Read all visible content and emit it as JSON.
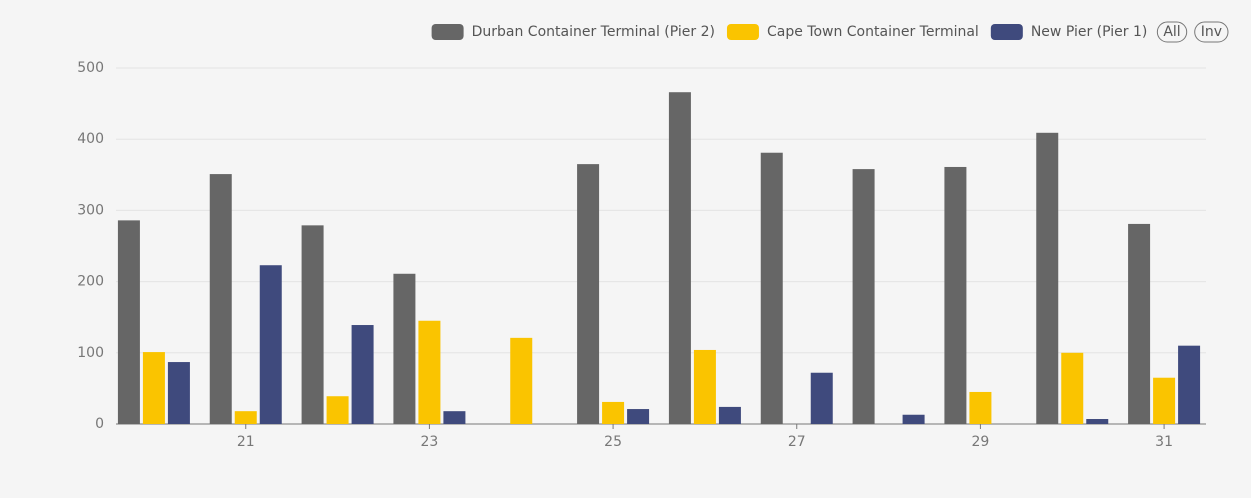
{
  "chart_data": {
    "type": "bar",
    "categories": [
      null,
      21,
      null,
      23,
      null,
      25,
      null,
      27,
      null,
      29,
      null,
      31
    ],
    "series": [
      {
        "name": "Durban Container Terminal (Pier 2)",
        "color": "#666666",
        "values": [
          286,
          351,
          279,
          211,
          0,
          365,
          466,
          381,
          358,
          361,
          409,
          281
        ]
      },
      {
        "name": "Cape Town Container Terminal",
        "color": "#fac400",
        "values": [
          101,
          18,
          39,
          145,
          121,
          31,
          104,
          0,
          0,
          45,
          100,
          65
        ]
      },
      {
        "name": "New Pier (Pier 1)",
        "color": "#3f4a7d",
        "values": [
          87,
          223,
          139,
          18,
          0,
          21,
          24,
          72,
          13,
          0,
          7,
          110
        ]
      }
    ],
    "ylim": [
      0,
      500
    ],
    "yticks": [
      0,
      100,
      200,
      300,
      400,
      500
    ],
    "grid": true,
    "legend": "top-right",
    "legend_buttons": [
      "All",
      "Inv"
    ]
  }
}
